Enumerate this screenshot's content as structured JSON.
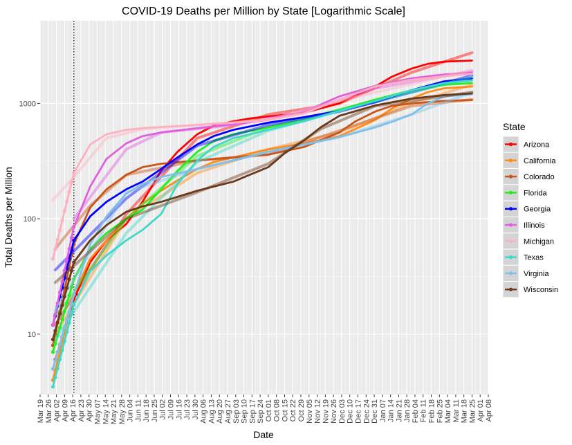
{
  "chart_data": {
    "type": "line",
    "title": "COVID-19 Deaths per Million by State [Logarithmic Scale]",
    "xlabel": "Date",
    "ylabel": "Total Deaths per Million",
    "y_scale": "log10",
    "ylim": [
      3,
      5200
    ],
    "y_ticks": [
      10,
      100,
      1000
    ],
    "y_tick_labels": [
      "10",
      "100",
      "1000"
    ],
    "x_start": "2020-03-19",
    "x_end": "2021-04-08",
    "x_tick_labels": [
      "Mar 19",
      "Mar 26",
      "Apr 02",
      "Apr 09",
      "Apr 16",
      "Apr 23",
      "Apr 30",
      "May 07",
      "May 14",
      "May 21",
      "May 28",
      "Jun 04",
      "Jun 11",
      "Jun 18",
      "Jun 25",
      "Jul 02",
      "Jul 09",
      "Jul 16",
      "Jul 23",
      "Jul 30",
      "Aug 06",
      "Aug 13",
      "Aug 20",
      "Aug 27",
      "Sep 03",
      "Sep 10",
      "Sep 17",
      "Sep 24",
      "Oct 01",
      "Oct 08",
      "Oct 15",
      "Oct 22",
      "Oct 29",
      "Nov 05",
      "Nov 12",
      "Nov 19",
      "Nov 26",
      "Dec 03",
      "Dec 10",
      "Dec 17",
      "Dec 24",
      "Dec 31",
      "Jan 07",
      "Jan 14",
      "Jan 21",
      "Jan 28",
      "Feb 04",
      "Feb 11",
      "Feb 18",
      "Feb 25",
      "Mar 04",
      "Mar 11",
      "Mar 18",
      "Mar 25",
      "Apr 01",
      "Apr 08"
    ],
    "vline_date": "2020-04-17",
    "grid": true,
    "legend_title": "State",
    "legend_position": "right",
    "series": [
      {
        "name": "Arizona",
        "color": "#ff0000",
        "points": [
          [
            "2020-04-01",
            6
          ],
          [
            "2020-04-17",
            20
          ],
          [
            "2020-05-01",
            42
          ],
          [
            "2020-05-15",
            65
          ],
          [
            "2020-06-01",
            90
          ],
          [
            "2020-06-15",
            140
          ],
          [
            "2020-07-01",
            260
          ],
          [
            "2020-07-15",
            380
          ],
          [
            "2020-08-01",
            540
          ],
          [
            "2020-08-15",
            640
          ],
          [
            "2020-09-01",
            700
          ],
          [
            "2020-09-15",
            740
          ],
          [
            "2020-10-01",
            770
          ],
          [
            "2020-11-01",
            830
          ],
          [
            "2020-12-01",
            1000
          ],
          [
            "2020-12-15",
            1170
          ],
          [
            "2021-01-01",
            1400
          ],
          [
            "2021-01-15",
            1700
          ],
          [
            "2021-02-01",
            2000
          ],
          [
            "2021-02-15",
            2200
          ],
          [
            "2021-03-01",
            2300
          ],
          [
            "2021-03-25",
            2350
          ]
        ],
        "trend": [
          [
            "2020-04-01",
            12
          ],
          [
            "2020-06-01",
            110
          ],
          [
            "2020-08-01",
            500
          ],
          [
            "2020-10-01",
            800
          ],
          [
            "2020-12-01",
            1000
          ],
          [
            "2021-02-01",
            1850
          ],
          [
            "2021-03-25",
            2750
          ]
        ]
      },
      {
        "name": "California",
        "color": "#ff8c1a",
        "points": [
          [
            "2020-03-30",
            4
          ],
          [
            "2020-04-17",
            22
          ],
          [
            "2020-05-01",
            45
          ],
          [
            "2020-05-15",
            65
          ],
          [
            "2020-06-01",
            100
          ],
          [
            "2020-06-15",
            135
          ],
          [
            "2020-07-01",
            175
          ],
          [
            "2020-07-15",
            215
          ],
          [
            "2020-08-01",
            270
          ],
          [
            "2020-08-15",
            310
          ],
          [
            "2020-09-01",
            340
          ],
          [
            "2020-10-01",
            400
          ],
          [
            "2020-11-01",
            450
          ],
          [
            "2020-12-01",
            520
          ],
          [
            "2020-12-15",
            600
          ],
          [
            "2021-01-01",
            720
          ],
          [
            "2021-01-15",
            900
          ],
          [
            "2021-02-01",
            1100
          ],
          [
            "2021-02-15",
            1250
          ],
          [
            "2021-03-01",
            1350
          ],
          [
            "2021-03-25",
            1400
          ]
        ],
        "trend": [
          [
            "2020-04-01",
            10
          ],
          [
            "2020-06-01",
            100
          ],
          [
            "2020-08-01",
            250
          ],
          [
            "2020-10-01",
            400
          ],
          [
            "2020-12-01",
            560
          ],
          [
            "2021-02-01",
            1000
          ],
          [
            "2021-03-25",
            1450
          ]
        ]
      },
      {
        "name": "Colorado",
        "color": "#c8561a",
        "points": [
          [
            "2020-03-30",
            8
          ],
          [
            "2020-04-17",
            60
          ],
          [
            "2020-05-01",
            125
          ],
          [
            "2020-05-15",
            180
          ],
          [
            "2020-06-01",
            240
          ],
          [
            "2020-06-15",
            280
          ],
          [
            "2020-07-01",
            300
          ],
          [
            "2020-08-01",
            320
          ],
          [
            "2020-09-01",
            340
          ],
          [
            "2020-10-01",
            360
          ],
          [
            "2020-11-01",
            420
          ],
          [
            "2020-12-01",
            560
          ],
          [
            "2020-12-15",
            700
          ],
          [
            "2021-01-01",
            850
          ],
          [
            "2021-01-15",
            950
          ],
          [
            "2021-02-01",
            1000
          ],
          [
            "2021-03-01",
            1050
          ],
          [
            "2021-03-25",
            1070
          ]
        ],
        "trend": [
          [
            "2020-04-01",
            55
          ],
          [
            "2020-05-01",
            130
          ],
          [
            "2020-06-01",
            240
          ],
          [
            "2020-08-01",
            320
          ],
          [
            "2020-10-01",
            360
          ],
          [
            "2020-12-01",
            580
          ],
          [
            "2021-02-01",
            950
          ],
          [
            "2021-03-25",
            1080
          ]
        ]
      },
      {
        "name": "Florida",
        "color": "#22ee22",
        "points": [
          [
            "2020-03-30",
            7
          ],
          [
            "2020-04-17",
            30
          ],
          [
            "2020-05-01",
            55
          ],
          [
            "2020-05-15",
            75
          ],
          [
            "2020-06-01",
            100
          ],
          [
            "2020-06-15",
            120
          ],
          [
            "2020-07-01",
            180
          ],
          [
            "2020-07-15",
            260
          ],
          [
            "2020-08-01",
            380
          ],
          [
            "2020-08-15",
            470
          ],
          [
            "2020-09-01",
            540
          ],
          [
            "2020-10-01",
            620
          ],
          [
            "2020-11-01",
            720
          ],
          [
            "2020-12-01",
            880
          ],
          [
            "2021-01-01",
            1080
          ],
          [
            "2021-02-01",
            1300
          ],
          [
            "2021-03-01",
            1450
          ],
          [
            "2021-03-25",
            1500
          ]
        ],
        "trend": [
          [
            "2020-04-01",
            14
          ],
          [
            "2020-06-01",
            100
          ],
          [
            "2020-08-01",
            350
          ],
          [
            "2020-10-01",
            620
          ],
          [
            "2020-12-01",
            880
          ],
          [
            "2021-02-01",
            1250
          ],
          [
            "2021-03-25",
            1650
          ]
        ]
      },
      {
        "name": "Georgia",
        "color": "#0000ff",
        "points": [
          [
            "2020-03-30",
            12
          ],
          [
            "2020-04-17",
            65
          ],
          [
            "2020-05-01",
            105
          ],
          [
            "2020-05-15",
            140
          ],
          [
            "2020-06-01",
            180
          ],
          [
            "2020-06-15",
            210
          ],
          [
            "2020-07-01",
            270
          ],
          [
            "2020-07-15",
            340
          ],
          [
            "2020-08-01",
            440
          ],
          [
            "2020-08-15",
            520
          ],
          [
            "2020-09-01",
            590
          ],
          [
            "2020-10-01",
            680
          ],
          [
            "2020-11-01",
            760
          ],
          [
            "2020-12-01",
            860
          ],
          [
            "2021-01-01",
            1020
          ],
          [
            "2021-02-01",
            1300
          ],
          [
            "2021-03-01",
            1550
          ],
          [
            "2021-03-25",
            1650
          ]
        ],
        "trend": [
          [
            "2020-04-01",
            36
          ],
          [
            "2020-06-01",
            150
          ],
          [
            "2020-08-01",
            430
          ],
          [
            "2020-10-01",
            650
          ],
          [
            "2020-12-01",
            850
          ],
          [
            "2021-02-01",
            1250
          ],
          [
            "2021-03-25",
            1750
          ]
        ]
      },
      {
        "name": "Illinois",
        "color": "#e060e0",
        "points": [
          [
            "2020-03-30",
            12
          ],
          [
            "2020-04-17",
            85
          ],
          [
            "2020-05-01",
            190
          ],
          [
            "2020-05-15",
            330
          ],
          [
            "2020-06-01",
            450
          ],
          [
            "2020-06-15",
            520
          ],
          [
            "2020-07-01",
            560
          ],
          [
            "2020-08-01",
            610
          ],
          [
            "2020-09-01",
            660
          ],
          [
            "2020-10-01",
            720
          ],
          [
            "2020-11-01",
            850
          ],
          [
            "2020-12-01",
            1150
          ],
          [
            "2021-01-01",
            1420
          ],
          [
            "2021-02-01",
            1650
          ],
          [
            "2021-03-01",
            1780
          ],
          [
            "2021-03-25",
            1850
          ]
        ],
        "trend": [
          [
            "2020-04-17",
            100
          ],
          [
            "2020-06-01",
            400
          ],
          [
            "2020-07-01",
            560
          ],
          [
            "2020-09-01",
            650
          ],
          [
            "2020-11-01",
            850
          ],
          [
            "2021-01-01",
            1350
          ],
          [
            "2021-03-25",
            1900
          ]
        ]
      },
      {
        "name": "Michigan",
        "color": "#ffb0c0",
        "points": [
          [
            "2020-03-30",
            45
          ],
          [
            "2020-04-17",
            250
          ],
          [
            "2020-05-01",
            440
          ],
          [
            "2020-05-15",
            540
          ],
          [
            "2020-06-01",
            590
          ],
          [
            "2020-06-15",
            610
          ],
          [
            "2020-07-01",
            625
          ],
          [
            "2020-08-01",
            650
          ],
          [
            "2020-09-01",
            680
          ],
          [
            "2020-10-01",
            720
          ],
          [
            "2020-11-01",
            820
          ],
          [
            "2020-12-01",
            1080
          ],
          [
            "2021-01-01",
            1400
          ],
          [
            "2021-02-01",
            1600
          ],
          [
            "2021-03-01",
            1720
          ],
          [
            "2021-03-25",
            1800
          ]
        ],
        "trend": [
          [
            "2020-03-30",
            145
          ],
          [
            "2020-04-17",
            230
          ],
          [
            "2020-05-15",
            500
          ],
          [
            "2020-06-15",
            600
          ],
          [
            "2020-08-01",
            650
          ],
          [
            "2020-10-01",
            720
          ],
          [
            "2020-12-01",
            1050
          ],
          [
            "2021-03-25",
            1950
          ]
        ]
      },
      {
        "name": "Texas",
        "color": "#40d8c8",
        "points": [
          [
            "2020-03-30",
            3.5
          ],
          [
            "2020-04-17",
            18
          ],
          [
            "2020-05-01",
            35
          ],
          [
            "2020-05-15",
            48
          ],
          [
            "2020-06-01",
            65
          ],
          [
            "2020-06-15",
            80
          ],
          [
            "2020-07-01",
            110
          ],
          [
            "2020-07-15",
            200
          ],
          [
            "2020-08-01",
            320
          ],
          [
            "2020-08-15",
            420
          ],
          [
            "2020-09-01",
            500
          ],
          [
            "2020-10-01",
            590
          ],
          [
            "2020-11-01",
            700
          ],
          [
            "2020-12-01",
            860
          ],
          [
            "2021-01-01",
            1050
          ],
          [
            "2021-02-01",
            1300
          ],
          [
            "2021-03-01",
            1500
          ],
          [
            "2021-03-25",
            1580
          ]
        ],
        "trend": [
          [
            "2020-04-01",
            9
          ],
          [
            "2020-06-01",
            75
          ],
          [
            "2020-08-01",
            310
          ],
          [
            "2020-10-01",
            580
          ],
          [
            "2020-12-01",
            860
          ],
          [
            "2021-02-01",
            1250
          ],
          [
            "2021-03-25",
            1700
          ]
        ]
      },
      {
        "name": "Virginia",
        "color": "#80c0e8",
        "points": [
          [
            "2020-03-30",
            5
          ],
          [
            "2020-04-17",
            22
          ],
          [
            "2020-05-01",
            60
          ],
          [
            "2020-05-15",
            105
          ],
          [
            "2020-06-01",
            165
          ],
          [
            "2020-06-15",
            200
          ],
          [
            "2020-07-01",
            230
          ],
          [
            "2020-08-01",
            270
          ],
          [
            "2020-09-01",
            320
          ],
          [
            "2020-10-01",
            380
          ],
          [
            "2020-11-01",
            440
          ],
          [
            "2020-12-01",
            510
          ],
          [
            "2021-01-01",
            620
          ],
          [
            "2021-01-15",
            690
          ],
          [
            "2021-02-01",
            800
          ],
          [
            "2021-02-15",
            1000
          ],
          [
            "2021-03-01",
            1150
          ],
          [
            "2021-03-25",
            1200
          ]
        ],
        "trend": [
          [
            "2020-04-01",
            16
          ],
          [
            "2020-06-01",
            170
          ],
          [
            "2020-08-01",
            270
          ],
          [
            "2020-10-01",
            380
          ],
          [
            "2020-12-01",
            510
          ],
          [
            "2021-02-01",
            800
          ],
          [
            "2021-03-25",
            1250
          ]
        ]
      },
      {
        "name": "Wisconsin",
        "color": "#6b3a1a",
        "points": [
          [
            "2020-03-30",
            9
          ],
          [
            "2020-04-17",
            42
          ],
          [
            "2020-05-01",
            65
          ],
          [
            "2020-05-15",
            88
          ],
          [
            "2020-06-01",
            115
          ],
          [
            "2020-06-15",
            128
          ],
          [
            "2020-07-01",
            140
          ],
          [
            "2020-08-01",
            175
          ],
          [
            "2020-09-01",
            210
          ],
          [
            "2020-10-01",
            280
          ],
          [
            "2020-10-15",
            370
          ],
          [
            "2020-11-01",
            480
          ],
          [
            "2020-11-15",
            620
          ],
          [
            "2020-12-01",
            780
          ],
          [
            "2021-01-01",
            960
          ],
          [
            "2021-02-01",
            1100
          ],
          [
            "2021-03-01",
            1180
          ],
          [
            "2021-03-25",
            1220
          ]
        ],
        "trend": [
          [
            "2020-04-01",
            28
          ],
          [
            "2020-06-01",
            100
          ],
          [
            "2020-08-01",
            170
          ],
          [
            "2020-10-01",
            300
          ],
          [
            "2020-11-15",
            600
          ],
          [
            "2021-01-01",
            950
          ],
          [
            "2021-03-25",
            1250
          ]
        ]
      }
    ]
  }
}
